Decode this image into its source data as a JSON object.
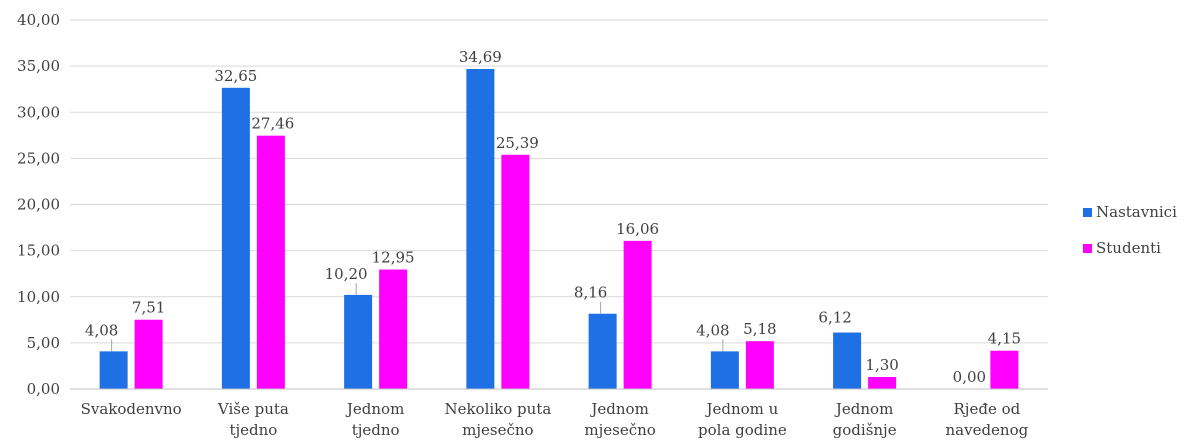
{
  "chart_data": {
    "type": "bar",
    "categories": [
      [
        "Svakodenvno"
      ],
      [
        "Više puta",
        "tjedno"
      ],
      [
        "Jednom",
        "tjedno"
      ],
      [
        "Nekoliko puta",
        "mjesečno"
      ],
      [
        "Jednom",
        "mjesečno"
      ],
      [
        "Jednom u",
        "pola godine"
      ],
      [
        "Jednom",
        "godišnje"
      ],
      [
        "Rjeđe od",
        "navedenog"
      ]
    ],
    "series": [
      {
        "name": "Nastavnici",
        "color": "#1f6fe5",
        "values": [
          4.08,
          32.65,
          10.2,
          34.69,
          8.16,
          4.08,
          6.12,
          0.0
        ],
        "labels": [
          "4,08",
          "32,65",
          "10,20",
          "34,69",
          "8,16",
          "4,08",
          "6,12",
          "0,00"
        ]
      },
      {
        "name": "Studenti",
        "color": "#ff00ff",
        "values": [
          7.51,
          27.46,
          12.95,
          25.39,
          16.06,
          5.18,
          1.3,
          4.15
        ],
        "labels": [
          "7,51",
          "27,46",
          "12,95",
          "25,39",
          "16,06",
          "5,18",
          "1,30",
          "4,15"
        ]
      }
    ],
    "ylim": [
      0,
      40
    ],
    "yticks": [
      "0,00",
      "5,00",
      "10,00",
      "15,00",
      "20,00",
      "25,00",
      "30,00",
      "35,00",
      "40,00"
    ],
    "grid": true,
    "legend_position": "right"
  }
}
